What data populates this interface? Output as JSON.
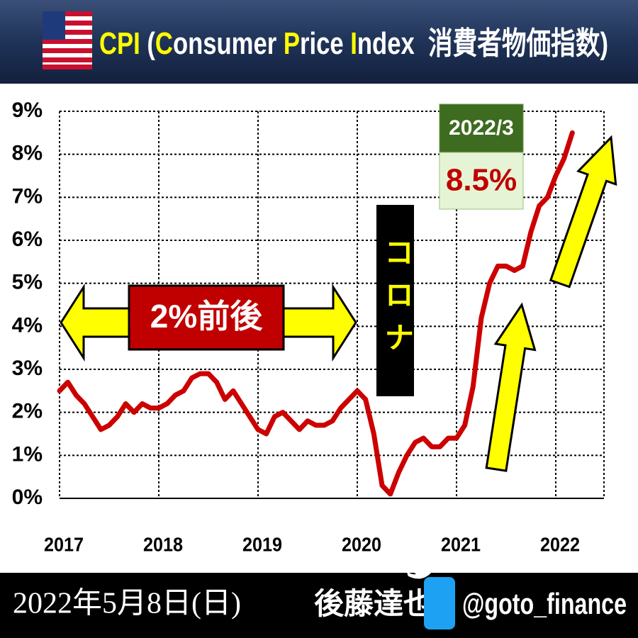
{
  "header": {
    "title_parts": [
      {
        "text": "CPI",
        "color": "#ffff00"
      },
      {
        "text": " (",
        "color": "#ffffff"
      },
      {
        "text": "C",
        "color": "#ffff00"
      },
      {
        "text": "onsumer ",
        "color": "#ffffff"
      },
      {
        "text": "P",
        "color": "#ffff00"
      },
      {
        "text": "rice ",
        "color": "#ffffff"
      },
      {
        "text": "I",
        "color": "#ffff00"
      },
      {
        "text": "ndex  消費者物価指数)",
        "color": "#ffffff"
      }
    ]
  },
  "chart_data": {
    "type": "line",
    "categories": [
      "2017",
      null,
      null,
      null,
      null,
      null,
      null,
      null,
      null,
      null,
      null,
      null,
      "2018",
      null,
      null,
      null,
      null,
      null,
      null,
      null,
      null,
      null,
      null,
      null,
      "2019",
      null,
      null,
      null,
      null,
      null,
      null,
      null,
      null,
      null,
      null,
      null,
      "2020",
      null,
      null,
      null,
      null,
      null,
      null,
      null,
      null,
      null,
      null,
      null,
      "2021",
      null,
      null,
      null,
      null,
      null,
      null,
      null,
      null,
      null,
      null,
      null,
      "2022",
      null,
      null
    ],
    "values": [
      2.5,
      2.7,
      2.4,
      2.2,
      1.9,
      1.6,
      1.7,
      1.9,
      2.2,
      2.0,
      2.2,
      2.1,
      2.1,
      2.2,
      2.4,
      2.5,
      2.8,
      2.9,
      2.9,
      2.7,
      2.3,
      2.5,
      2.2,
      1.9,
      1.6,
      1.5,
      1.9,
      2.0,
      1.8,
      1.6,
      1.8,
      1.7,
      1.7,
      1.8,
      2.1,
      2.3,
      2.5,
      2.3,
      1.5,
      0.3,
      0.1,
      0.6,
      1.0,
      1.3,
      1.4,
      1.2,
      1.2,
      1.4,
      1.4,
      1.7,
      2.6,
      4.2,
      5.0,
      5.4,
      5.4,
      5.3,
      5.4,
      6.2,
      6.8,
      7.0,
      7.5,
      7.9,
      8.5
    ],
    "color": "#cc0000",
    "ylim": [
      0,
      9
    ],
    "yticks": [
      {
        "value": 0,
        "label": "0%"
      },
      {
        "value": 1,
        "label": "1%"
      },
      {
        "value": 2,
        "label": "2%"
      },
      {
        "value": 3,
        "label": "3%"
      },
      {
        "value": 4,
        "label": "4%"
      },
      {
        "value": 5,
        "label": "5%"
      },
      {
        "value": 6,
        "label": "6%"
      },
      {
        "value": 7,
        "label": "7%"
      },
      {
        "value": 8,
        "label": "8%"
      },
      {
        "value": 9,
        "label": "9%"
      }
    ],
    "grid": true,
    "annotations": {
      "range_label": "2%前後",
      "corona_label": "コロナ",
      "latest_date": "2022/3",
      "latest_value": "8.5%"
    }
  },
  "footer": {
    "date": "2022年5月8日(日)",
    "author": "後藤達也",
    "handle": "@goto_finance"
  }
}
